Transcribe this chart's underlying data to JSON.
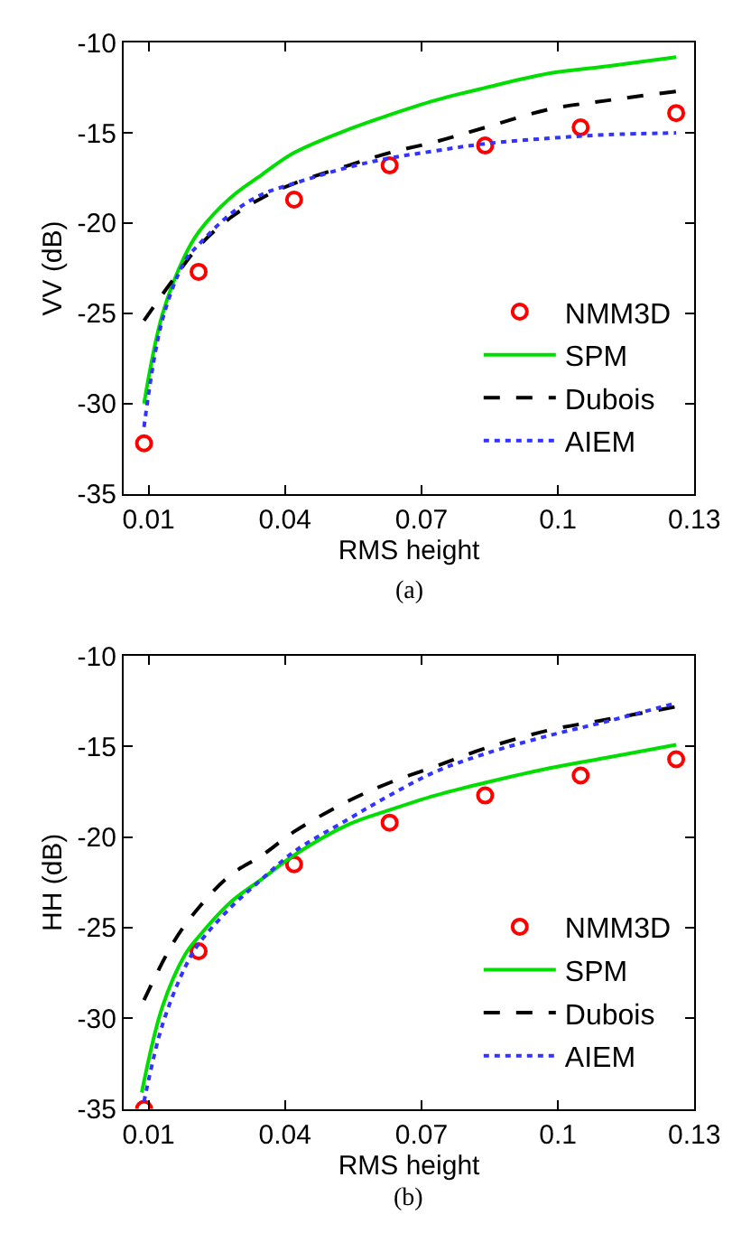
{
  "chart_data": [
    {
      "type": "line",
      "xlabel": "RMS height",
      "ylabel": "VV (dB)",
      "annotations": [
        "(a)"
      ],
      "xlim": [
        0.0045,
        0.13
      ],
      "xticks": [
        0.01,
        0.04,
        0.07,
        0.1,
        0.13
      ],
      "ylim": [
        -35,
        -10
      ],
      "yticks": [
        -35,
        -30,
        -25,
        -20,
        -15,
        -10
      ],
      "legend": "bottom right",
      "series": [
        {
          "name": "NMM3D",
          "type": "scatter",
          "marker": "circle",
          "color": "#ff0000",
          "x": [
            0.009,
            0.021,
            0.042,
            0.063,
            0.084,
            0.105,
            0.126
          ],
          "values": [
            -32.2,
            -22.7,
            -18.7,
            -16.8,
            -15.7,
            -14.7,
            -13.9
          ]
        },
        {
          "name": "SPM",
          "line_style": "solid",
          "color": "#00dd00",
          "x": [
            0.009,
            0.013,
            0.018,
            0.021,
            0.028,
            0.035,
            0.042,
            0.054,
            0.063,
            0.073,
            0.084,
            0.098,
            0.111,
            0.126
          ],
          "values": [
            -30.0,
            -25.1,
            -21.8,
            -20.5,
            -18.6,
            -17.3,
            -16.1,
            -14.8,
            -14.0,
            -13.2,
            -12.5,
            -11.7,
            -11.3,
            -10.8
          ]
        },
        {
          "name": "Dubois",
          "line_style": "dashed",
          "color": "#000000",
          "x": [
            0.009,
            0.0155,
            0.021,
            0.028,
            0.035,
            0.042,
            0.054,
            0.063,
            0.073,
            0.084,
            0.098,
            0.111,
            0.126
          ],
          "values": [
            -25.4,
            -23.1,
            -21.3,
            -19.7,
            -18.6,
            -17.8,
            -16.8,
            -16.1,
            -15.5,
            -14.7,
            -13.7,
            -13.2,
            -12.7
          ]
        },
        {
          "name": "AIEM",
          "line_style": "dotted",
          "color": "#3333ff",
          "x": [
            0.009,
            0.013,
            0.018,
            0.021,
            0.028,
            0.035,
            0.042,
            0.054,
            0.063,
            0.073,
            0.084,
            0.098,
            0.111,
            0.126
          ],
          "values": [
            -31.3,
            -25.4,
            -22.1,
            -21.2,
            -19.5,
            -18.4,
            -17.8,
            -16.9,
            -16.4,
            -16.0,
            -15.6,
            -15.3,
            -15.1,
            -15.0
          ]
        }
      ]
    },
    {
      "type": "line",
      "xlabel": "RMS height",
      "ylabel": "HH (dB)",
      "annotations": [
        "(b)"
      ],
      "xlim": [
        0.0045,
        0.13
      ],
      "xticks": [
        0.01,
        0.04,
        0.07,
        0.1,
        0.13
      ],
      "ylim": [
        -35,
        -10
      ],
      "yticks": [
        -35,
        -30,
        -25,
        -20,
        -15,
        -10
      ],
      "legend": "bottom right",
      "series": [
        {
          "name": "NMM3D",
          "type": "scatter",
          "marker": "circle",
          "color": "#ff0000",
          "x": [
            0.009,
            0.021,
            0.042,
            0.063,
            0.084,
            0.105,
            0.126
          ],
          "values": [
            -35.0,
            -26.3,
            -21.5,
            -19.2,
            -17.7,
            -16.6,
            -15.7
          ]
        },
        {
          "name": "SPM",
          "line_style": "solid",
          "color": "#00dd00",
          "x": [
            0.0085,
            0.013,
            0.018,
            0.021,
            0.028,
            0.035,
            0.042,
            0.054,
            0.063,
            0.073,
            0.084,
            0.098,
            0.111,
            0.126
          ],
          "values": [
            -34.1,
            -29.4,
            -26.5,
            -25.5,
            -23.6,
            -22.3,
            -21.0,
            -19.3,
            -18.5,
            -17.7,
            -17.0,
            -16.2,
            -15.6,
            -14.9
          ]
        },
        {
          "name": "Dubois",
          "line_style": "dashed",
          "color": "#000000",
          "x": [
            0.009,
            0.0155,
            0.021,
            0.028,
            0.035,
            0.042,
            0.054,
            0.063,
            0.073,
            0.084,
            0.098,
            0.111,
            0.126
          ],
          "values": [
            -29.0,
            -25.8,
            -23.9,
            -22.1,
            -21.0,
            -19.7,
            -18.0,
            -17.0,
            -16.1,
            -15.1,
            -14.1,
            -13.5,
            -12.8
          ]
        },
        {
          "name": "AIEM",
          "line_style": "dotted",
          "color": "#3333ff",
          "x": [
            0.009,
            0.013,
            0.018,
            0.021,
            0.028,
            0.035,
            0.042,
            0.054,
            0.063,
            0.073,
            0.084,
            0.098,
            0.111,
            0.126
          ],
          "values": [
            -34.6,
            -30.4,
            -27.2,
            -25.9,
            -23.9,
            -22.3,
            -20.8,
            -19.0,
            -17.7,
            -16.4,
            -15.4,
            -14.4,
            -13.6,
            -12.6
          ]
        }
      ]
    }
  ]
}
